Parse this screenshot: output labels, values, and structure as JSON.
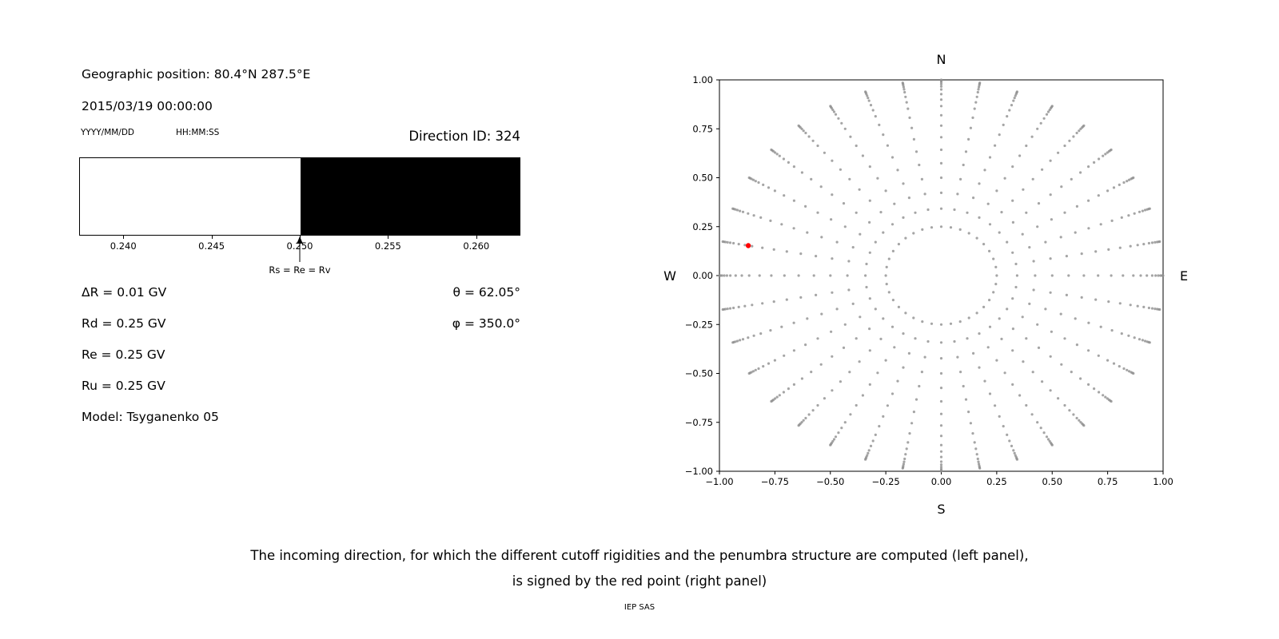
{
  "header": {
    "geographic_position": "Geographic position: 80.4°N 287.5°E",
    "datetime": "2015/03/19 00:00:00",
    "date_format_label": "YYYY/MM/DD",
    "time_format_label": "HH:MM:SS",
    "direction_id": "Direction ID: 324"
  },
  "left_panel": {
    "lines": {
      "delta_r": "ΔR = 0.01 GV",
      "rd": "Rd = 0.25 GV",
      "re": "Re = 0.25 GV",
      "ru": "Ru = 0.25 GV",
      "model": "Model: Tsyganenko 05",
      "theta": "θ = 62.05°",
      "phi": "φ = 350.0°"
    }
  },
  "chart_data": [
    {
      "type": "area",
      "name": "penumbra-structure",
      "x_range": [
        0.2375,
        0.2625
      ],
      "x_ticks": [
        0.24,
        0.245,
        0.25,
        0.255,
        0.26
      ],
      "x_tick_labels": [
        "0.240",
        "0.245",
        "0.250",
        "0.255",
        "0.260"
      ],
      "allowed_region": {
        "from": 0.2375,
        "to": 0.25,
        "color": "#ffffff"
      },
      "forbidden_region": {
        "from": 0.25,
        "to": 0.2625,
        "color": "#000000"
      },
      "annotation": {
        "x": 0.25,
        "label": "Rs = Re = Rv"
      }
    },
    {
      "type": "scatter",
      "name": "incoming-directions",
      "xlim": [
        -1,
        1
      ],
      "ylim": [
        -1,
        1
      ],
      "x_ticks": [
        -1,
        -0.75,
        -0.5,
        -0.25,
        0,
        0.25,
        0.5,
        0.75,
        1
      ],
      "y_ticks": [
        -1,
        -0.75,
        -0.5,
        -0.25,
        0,
        0.25,
        0.5,
        0.75,
        1
      ],
      "x_tick_labels": [
        "−1.00",
        "−0.75",
        "−0.50",
        "−0.25",
        "0.00",
        "0.25",
        "0.50",
        "0.75",
        "1.00"
      ],
      "y_tick_labels": [
        "−1.00",
        "−0.75",
        "−0.50",
        "−0.25",
        "0.00",
        "0.25",
        "0.50",
        "0.75",
        "1.00"
      ],
      "compass": {
        "top": "N",
        "bottom": "S",
        "left": "W",
        "right": "E"
      },
      "grid_points": {
        "azimuths_deg": [
          0,
          10,
          20,
          30,
          40,
          50,
          60,
          70,
          80,
          90,
          100,
          110,
          120,
          130,
          140,
          150,
          160,
          170,
          180,
          190,
          200,
          210,
          220,
          230,
          240,
          250,
          260,
          270,
          280,
          290,
          300,
          310,
          320,
          330,
          340,
          350
        ],
        "radii": [
          0.25,
          0.342,
          0.423,
          0.5,
          0.574,
          0.643,
          0.707,
          0.766,
          0.819,
          0.866,
          0.899,
          0.927,
          0.951,
          0.966,
          0.978,
          0.988,
          0.995,
          1.0
        ],
        "color": "#8e8e8e"
      },
      "red_point": {
        "x": -0.87,
        "y": 0.153,
        "color": "#ff0000"
      }
    }
  ],
  "caption": {
    "line1": "The incoming direction, for which the different cutoff rigidities and the penumbra structure are computed (left panel),",
    "line2": "is signed by the red point (right panel)",
    "credit": "IEP SAS"
  }
}
